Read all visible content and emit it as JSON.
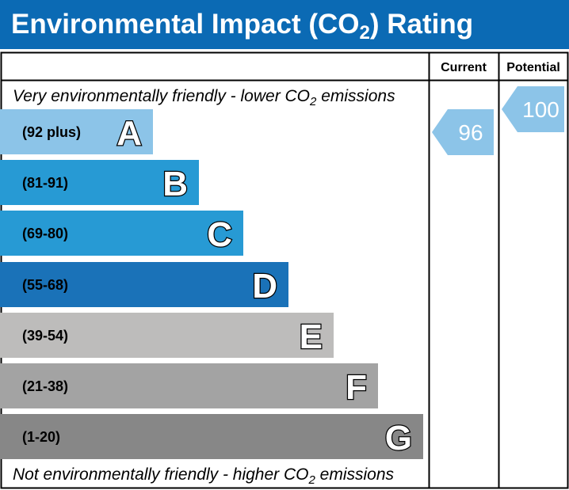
{
  "title": "Environmental Impact (CO₂) Rating",
  "title_main": "Environmental Impact (CO",
  "title_sub": "2",
  "title_end": ") Rating",
  "columns": {
    "current": "Current",
    "potential": "Potential"
  },
  "top_note": {
    "main": "Very environmentally friendly - lower CO",
    "sub": "2",
    "end": " emissions"
  },
  "bottom_note": {
    "main": "Not environmentally friendly - higher CO",
    "sub": "2",
    "end": " emissions"
  },
  "colors": {
    "title_bar": "#0b6ab4",
    "arrow": "#8cc4e8"
  },
  "chart_data": {
    "type": "bar",
    "bands": [
      {
        "letter": "A",
        "range": "(92 plus)",
        "color": "#8cc4e8"
      },
      {
        "letter": "B",
        "range": "(81-91)",
        "color": "#279ad4"
      },
      {
        "letter": "C",
        "range": "(69-80)",
        "color": "#279ad4"
      },
      {
        "letter": "D",
        "range": "(55-68)",
        "color": "#1a72b8"
      },
      {
        "letter": "E",
        "range": "(39-54)",
        "color": "#bdbcbb"
      },
      {
        "letter": "F",
        "range": "(21-38)",
        "color": "#a3a3a3"
      },
      {
        "letter": "G",
        "range": "(1-20)",
        "color": "#878787"
      }
    ],
    "current": {
      "value": "96",
      "band": "A"
    },
    "potential": {
      "value": "100",
      "band": "A"
    }
  }
}
